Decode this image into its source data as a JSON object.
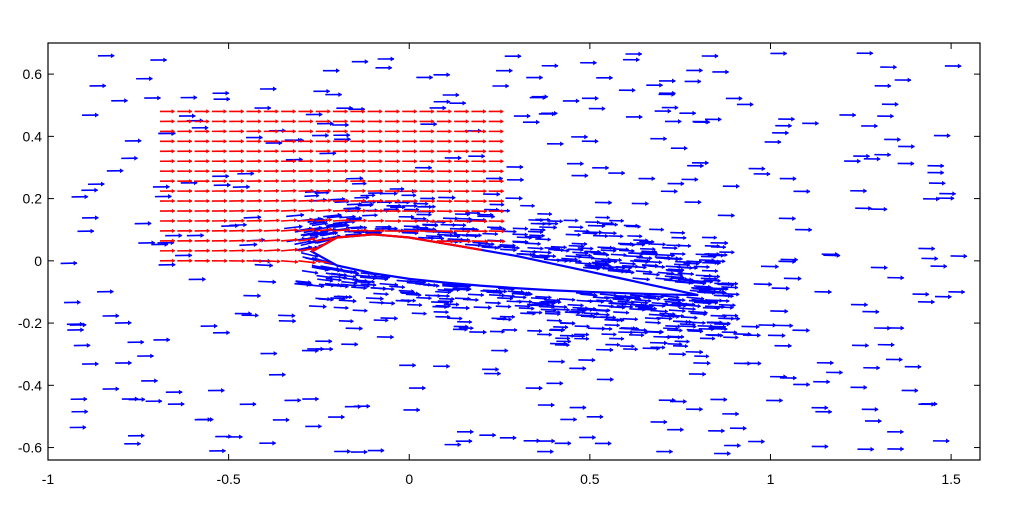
{
  "chart_data": {
    "type": "quiver",
    "title": "",
    "xlabel": "",
    "ylabel": "",
    "xlim": [
      -1,
      1.58
    ],
    "ylim": [
      -0.64,
      0.7
    ],
    "x_ticks": [
      -1,
      -0.5,
      0,
      0.5,
      1,
      1.5
    ],
    "y_ticks": [
      0.6,
      0.4,
      0.2,
      0,
      -0.2,
      -0.4,
      -0.6
    ],
    "x_tick_labels": [
      "-1",
      "-0.5",
      "0",
      "0.5",
      "1",
      "1.5"
    ],
    "y_tick_labels": [
      "0.6",
      "0.4",
      "0.2",
      "0",
      "-0.2",
      "-0.4",
      "-0.6"
    ],
    "grid": false,
    "series": [
      {
        "color": "#0000ff",
        "description_values": {
          "freestream_velocity": [
            0.045,
            0.0
          ],
          "airfoil_leading_edge": [
            -0.27,
            0.03
          ],
          "airfoil_trailing_edge": [
            0.8,
            -0.11
          ],
          "airfoil_max_thickness": 0.07
        }
      },
      {
        "color": "#ff0000",
        "region_x": [
          -0.69,
          0.22
        ],
        "region_y": [
          0.0,
          0.48
        ],
        "rows": 16,
        "cols": 20,
        "arrow_length": 0.04
      }
    ],
    "airfoil_upper_y_at_x": [
      [
        -0.27,
        0.03
      ],
      [
        -0.2,
        0.075
      ],
      [
        -0.1,
        0.085
      ],
      [
        0.0,
        0.075
      ],
      [
        0.1,
        0.055
      ],
      [
        0.2,
        0.035
      ],
      [
        0.3,
        0.015
      ],
      [
        0.4,
        -0.01
      ],
      [
        0.5,
        -0.035
      ],
      [
        0.6,
        -0.06
      ],
      [
        0.7,
        -0.085
      ],
      [
        0.8,
        -0.11
      ]
    ],
    "airfoil_lower_y_at_x": [
      [
        -0.27,
        0.03
      ],
      [
        -0.2,
        -0.015
      ],
      [
        -0.1,
        -0.04
      ],
      [
        0.0,
        -0.058
      ],
      [
        0.1,
        -0.07
      ],
      [
        0.2,
        -0.08
      ],
      [
        0.3,
        -0.088
      ],
      [
        0.4,
        -0.095
      ],
      [
        0.5,
        -0.1
      ],
      [
        0.6,
        -0.104
      ],
      [
        0.7,
        -0.108
      ],
      [
        0.8,
        -0.11
      ]
    ]
  }
}
